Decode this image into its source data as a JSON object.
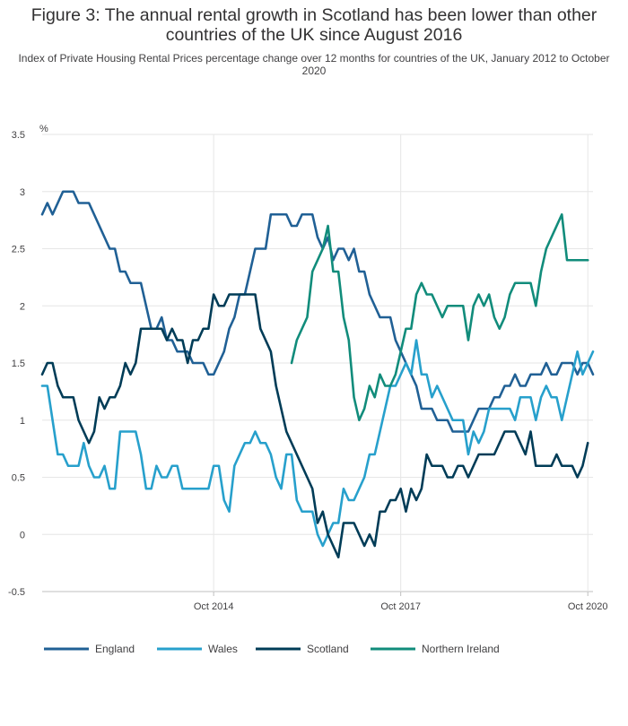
{
  "chart_data": {
    "type": "line",
    "title": "Figure 3: The annual rental growth in Scotland has been lower than other countries of the UK since August 2016",
    "subtitle": "Index of Private Housing Rental Prices percentage change over 12 months for countries of the UK, January 2012 to October 2020",
    "ylabel": "%",
    "xlabel": "",
    "ylim": [
      -0.5,
      3.5
    ],
    "yticks": [
      "3.5",
      "3",
      "2.5",
      "2",
      "1.5",
      "1",
      "0.5",
      "0",
      "-0.5"
    ],
    "x_start": "Jan 2012",
    "x_end": "Oct 2020",
    "xticks": [
      {
        "label": "Oct 2014",
        "index": 33
      },
      {
        "label": "Oct 2017",
        "index": 69
      },
      {
        "label": "Oct 2020",
        "index": 105
      }
    ],
    "series": [
      {
        "name": "England",
        "color": "#206095",
        "values": [
          2.8,
          2.9,
          2.8,
          2.9,
          3.0,
          3.0,
          3.0,
          2.9,
          2.9,
          2.9,
          2.8,
          2.7,
          2.6,
          2.5,
          2.5,
          2.3,
          2.3,
          2.2,
          2.2,
          2.2,
          2.0,
          1.8,
          1.8,
          1.9,
          1.7,
          1.7,
          1.6,
          1.6,
          1.6,
          1.5,
          1.5,
          1.5,
          1.4,
          1.4,
          1.5,
          1.6,
          1.8,
          1.9,
          2.1,
          2.1,
          2.3,
          2.5,
          2.5,
          2.5,
          2.8,
          2.8,
          2.8,
          2.8,
          2.7,
          2.7,
          2.8,
          2.8,
          2.8,
          2.6,
          2.5,
          2.6,
          2.4,
          2.5,
          2.5,
          2.4,
          2.5,
          2.3,
          2.3,
          2.1,
          2.0,
          1.9,
          1.9,
          1.9,
          1.7,
          1.6,
          1.5,
          1.4,
          1.3,
          1.1,
          1.1,
          1.1,
          1.0,
          1.0,
          1.0,
          0.9,
          0.9,
          0.9,
          0.9,
          1.0,
          1.1,
          1.1,
          1.1,
          1.2,
          1.2,
          1.3,
          1.3,
          1.4,
          1.3,
          1.3,
          1.4,
          1.4,
          1.4,
          1.5,
          1.4,
          1.4,
          1.5,
          1.5,
          1.5,
          1.4,
          1.5,
          1.5,
          1.4
        ]
      },
      {
        "name": "Wales",
        "color": "#27a0cc",
        "values": [
          1.3,
          1.3,
          1.0,
          0.7,
          0.7,
          0.6,
          0.6,
          0.6,
          0.8,
          0.6,
          0.5,
          0.5,
          0.6,
          0.4,
          0.4,
          0.9,
          0.9,
          0.9,
          0.9,
          0.7,
          0.4,
          0.4,
          0.6,
          0.5,
          0.5,
          0.6,
          0.6,
          0.4,
          0.4,
          0.4,
          0.4,
          0.4,
          0.4,
          0.6,
          0.6,
          0.3,
          0.2,
          0.6,
          0.7,
          0.8,
          0.8,
          0.9,
          0.8,
          0.8,
          0.7,
          0.5,
          0.4,
          0.7,
          0.7,
          0.3,
          0.2,
          0.2,
          0.2,
          0.0,
          -0.1,
          0.0,
          0.1,
          0.1,
          0.4,
          0.3,
          0.3,
          0.4,
          0.5,
          0.7,
          0.7,
          0.9,
          1.1,
          1.3,
          1.3,
          1.4,
          1.5,
          1.4,
          1.7,
          1.4,
          1.4,
          1.2,
          1.3,
          1.2,
          1.1,
          1.0,
          1.0,
          1.0,
          0.7,
          0.9,
          0.8,
          0.9,
          1.1,
          1.1,
          1.1,
          1.1,
          1.1,
          1.0,
          1.2,
          1.2,
          1.2,
          1.0,
          1.2,
          1.3,
          1.2,
          1.2,
          1.0,
          1.2,
          1.4,
          1.6,
          1.4,
          1.5,
          1.6
        ]
      },
      {
        "name": "Scotland",
        "color": "#003c57",
        "values": [
          1.4,
          1.5,
          1.5,
          1.3,
          1.2,
          1.2,
          1.2,
          1.0,
          0.9,
          0.8,
          0.9,
          1.2,
          1.1,
          1.2,
          1.2,
          1.3,
          1.5,
          1.4,
          1.5,
          1.8,
          1.8,
          1.8,
          1.8,
          1.8,
          1.7,
          1.8,
          1.7,
          1.7,
          1.5,
          1.7,
          1.7,
          1.8,
          1.8,
          2.1,
          2.0,
          2.0,
          2.1,
          2.1,
          2.1,
          2.1,
          2.1,
          2.1,
          1.8,
          1.7,
          1.6,
          1.3,
          1.1,
          0.9,
          0.8,
          0.7,
          0.6,
          0.5,
          0.4,
          0.1,
          0.2,
          0.0,
          -0.1,
          -0.2,
          0.1,
          0.1,
          0.1,
          0.0,
          -0.1,
          0.0,
          -0.1,
          0.2,
          0.2,
          0.3,
          0.3,
          0.4,
          0.2,
          0.4,
          0.3,
          0.4,
          0.7,
          0.6,
          0.6,
          0.6,
          0.5,
          0.5,
          0.6,
          0.6,
          0.5,
          0.6,
          0.7,
          0.7,
          0.7,
          0.7,
          0.8,
          0.9,
          0.9,
          0.9,
          0.8,
          0.7,
          0.9,
          0.6,
          0.6,
          0.6,
          0.6,
          0.7,
          0.6,
          0.6,
          0.6,
          0.5,
          0.6,
          0.8
        ]
      },
      {
        "name": "Northern Ireland",
        "color": "#118c7b",
        "start_index": 48,
        "values": [
          1.5,
          1.7,
          1.8,
          1.9,
          2.3,
          2.4,
          2.5,
          2.7,
          2.3,
          2.3,
          1.9,
          1.7,
          1.2,
          1.0,
          1.1,
          1.3,
          1.2,
          1.4,
          1.3,
          1.3,
          1.4,
          1.6,
          1.8,
          1.8,
          2.1,
          2.2,
          2.1,
          2.1,
          2.0,
          1.9,
          2.0,
          2.0,
          2.0,
          2.0,
          1.7,
          2.0,
          2.1,
          2.0,
          2.1,
          1.9,
          1.8,
          1.9,
          2.1,
          2.2,
          2.2,
          2.2,
          2.2,
          2.0,
          2.3,
          2.5,
          2.6,
          2.7,
          2.8,
          2.4,
          2.4,
          2.4,
          2.4,
          2.4
        ]
      }
    ],
    "legend_position": "bottom",
    "grid": true
  }
}
